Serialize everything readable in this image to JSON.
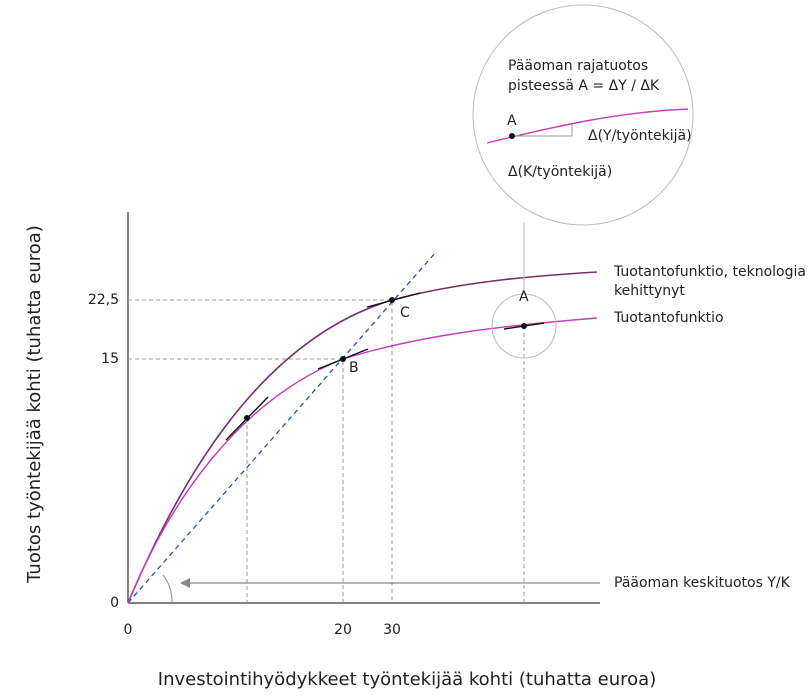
{
  "axes": {
    "y_label": "Tuotos työntekijää kohti (tuhatta euroa)",
    "x_label": "Investointihyödykkeet työntekijää kohti (tuhatta euroa)",
    "y_ticks": [
      "22,5",
      "15",
      "0"
    ],
    "x_ticks": [
      "0",
      "20",
      "30"
    ]
  },
  "curves": {
    "upper": [
      "Tuotantofunktio, teknologia",
      "kehittynyt"
    ],
    "lower": "Tuotantofunktio",
    "average": "Pääoman keskituotos Y/K"
  },
  "points": {
    "a": "A",
    "b": "B",
    "c": "C"
  },
  "inset": {
    "title": [
      "Pääoman rajatuotos",
      "pisteessä A = ΔY / ΔK"
    ],
    "point": "A",
    "dy": "Δ(Y/työntekijä)",
    "dx": "Δ(K/työntekijä)"
  }
}
